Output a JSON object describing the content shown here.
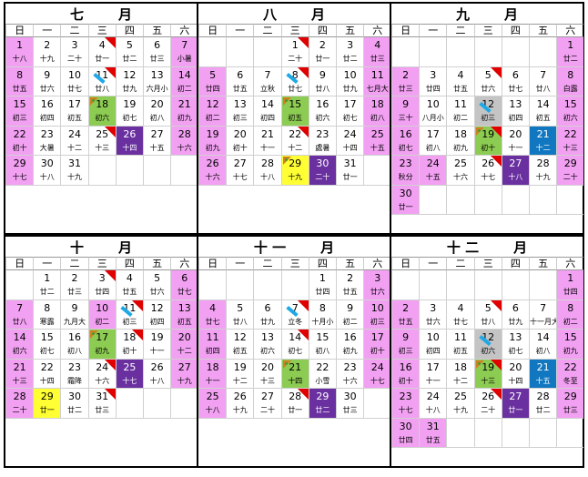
{
  "weekdays": [
    "日",
    "一",
    "二",
    "三",
    "四",
    "五",
    "六"
  ],
  "colors": {
    "weekend": "#f2a0f2",
    "moon": "#8dcc52",
    "new_moon": "#6a30a0",
    "holiday": "#ffff33",
    "gray": "#c4c4c4",
    "blue": "#1177c0"
  },
  "panels": [
    {
      "month": "七",
      "suffix": "月",
      "cells": [
        {
          "d": "1",
          "l": "十八",
          "bg": "weekend"
        },
        {
          "d": "2",
          "l": "十九"
        },
        {
          "d": "3",
          "l": "二十"
        },
        {
          "d": "4",
          "l": "廿一",
          "m": "tri"
        },
        {
          "d": "5",
          "l": "廿二"
        },
        {
          "d": "6",
          "l": "廿三"
        },
        {
          "d": "7",
          "l": "小暑",
          "bg": "weekend"
        },
        {
          "d": "8",
          "l": "廿五",
          "bg": "weekend"
        },
        {
          "d": "9",
          "l": "廿六"
        },
        {
          "d": "10",
          "l": "廿七"
        },
        {
          "d": "11",
          "l": "廿八",
          "m": "tri,blu"
        },
        {
          "d": "12",
          "l": "廿九"
        },
        {
          "d": "13",
          "l": "六月小"
        },
        {
          "d": "14",
          "l": "初二",
          "bg": "weekend"
        },
        {
          "d": "15",
          "l": "初三",
          "bg": "weekend"
        },
        {
          "d": "16",
          "l": "初四"
        },
        {
          "d": "17",
          "l": "初五"
        },
        {
          "d": "18",
          "l": "初六",
          "bg": "moon",
          "m": "dots"
        },
        {
          "d": "19",
          "l": "初七"
        },
        {
          "d": "20",
          "l": "初八"
        },
        {
          "d": "21",
          "l": "初九",
          "bg": "weekend"
        },
        {
          "d": "22",
          "l": "初十",
          "bg": "weekend"
        },
        {
          "d": "23",
          "l": "大暑"
        },
        {
          "d": "24",
          "l": "十二"
        },
        {
          "d": "25",
          "l": "十三",
          "m": "tri"
        },
        {
          "d": "26",
          "l": "十四",
          "bg": "new_moon"
        },
        {
          "d": "27",
          "l": "十五"
        },
        {
          "d": "28",
          "l": "十六",
          "bg": "weekend"
        },
        {
          "d": "29",
          "l": "十七",
          "bg": "weekend"
        },
        {
          "d": "30",
          "l": "十八"
        },
        {
          "d": "31",
          "l": "十九"
        },
        {
          "d": ""
        },
        {
          "d": ""
        },
        {
          "d": ""
        },
        {
          "d": ""
        }
      ]
    },
    {
      "month": "八",
      "suffix": "月",
      "cells": [
        {
          "d": ""
        },
        {
          "d": ""
        },
        {
          "d": ""
        },
        {
          "d": "1",
          "l": "二十",
          "m": "tri"
        },
        {
          "d": "2",
          "l": "廿一"
        },
        {
          "d": "3",
          "l": "廿二"
        },
        {
          "d": "4",
          "l": "廿三",
          "bg": "weekend"
        },
        {
          "d": "5",
          "l": "廿四",
          "bg": "weekend"
        },
        {
          "d": "6",
          "l": "廿五"
        },
        {
          "d": "7",
          "l": "立秋"
        },
        {
          "d": "8",
          "l": "廿七",
          "m": "tri,blu"
        },
        {
          "d": "9",
          "l": "廿八"
        },
        {
          "d": "10",
          "l": "廿九"
        },
        {
          "d": "11",
          "l": "七月大",
          "bg": "weekend"
        },
        {
          "d": "12",
          "l": "初二",
          "bg": "weekend"
        },
        {
          "d": "13",
          "l": "初三"
        },
        {
          "d": "14",
          "l": "初四"
        },
        {
          "d": "15",
          "l": "初五",
          "bg": "moon",
          "m": "dots"
        },
        {
          "d": "16",
          "l": "初六"
        },
        {
          "d": "17",
          "l": "初七"
        },
        {
          "d": "18",
          "l": "初八",
          "bg": "weekend"
        },
        {
          "d": "19",
          "l": "初九",
          "bg": "weekend"
        },
        {
          "d": "20",
          "l": "初十"
        },
        {
          "d": "21",
          "l": "十一"
        },
        {
          "d": "22",
          "l": "十二",
          "m": "tri"
        },
        {
          "d": "23",
          "l": "處暑"
        },
        {
          "d": "24",
          "l": "十四"
        },
        {
          "d": "25",
          "l": "十五",
          "bg": "weekend"
        },
        {
          "d": "26",
          "l": "十六",
          "bg": "weekend"
        },
        {
          "d": "27",
          "l": "十七"
        },
        {
          "d": "28",
          "l": "十八"
        },
        {
          "d": "29",
          "l": "十九",
          "bg": "holiday",
          "m": "dots"
        },
        {
          "d": "30",
          "l": "二十",
          "bg": "new_moon"
        },
        {
          "d": "31",
          "l": "廿一"
        },
        {
          "d": ""
        }
      ]
    },
    {
      "month": "九",
      "suffix": "月",
      "cells": [
        {
          "d": ""
        },
        {
          "d": ""
        },
        {
          "d": ""
        },
        {
          "d": ""
        },
        {
          "d": ""
        },
        {
          "d": ""
        },
        {
          "d": "1",
          "l": "廿二",
          "bg": "weekend"
        },
        {
          "d": "2",
          "l": "廿三",
          "bg": "weekend"
        },
        {
          "d": "3",
          "l": "廿四"
        },
        {
          "d": "4",
          "l": "廿五"
        },
        {
          "d": "5",
          "l": "廿六",
          "m": "tri"
        },
        {
          "d": "6",
          "l": "廿七"
        },
        {
          "d": "7",
          "l": "廿八"
        },
        {
          "d": "8",
          "l": "白露",
          "bg": "weekend"
        },
        {
          "d": "9",
          "l": "三十",
          "bg": "weekend"
        },
        {
          "d": "10",
          "l": "八月小"
        },
        {
          "d": "11",
          "l": "初二"
        },
        {
          "d": "12",
          "l": "初三",
          "bg": "gray",
          "m": "blu"
        },
        {
          "d": "13",
          "l": "初四"
        },
        {
          "d": "14",
          "l": "初五"
        },
        {
          "d": "15",
          "l": "初六",
          "bg": "weekend"
        },
        {
          "d": "16",
          "l": "初七",
          "bg": "weekend"
        },
        {
          "d": "17",
          "l": "初八"
        },
        {
          "d": "18",
          "l": "初九"
        },
        {
          "d": "19",
          "l": "初十",
          "bg": "moon",
          "m": "tri,dots"
        },
        {
          "d": "20",
          "l": "十一"
        },
        {
          "d": "21",
          "l": "十二",
          "bg": "blue"
        },
        {
          "d": "22",
          "l": "十三",
          "bg": "weekend"
        },
        {
          "d": "23",
          "l": "秋分",
          "bg": "weekend"
        },
        {
          "d": "24",
          "l": "十五",
          "bg": "weekend"
        },
        {
          "d": "25",
          "l": "十六"
        },
        {
          "d": "26",
          "l": "十七",
          "m": "tri"
        },
        {
          "d": "27",
          "l": "十八",
          "bg": "new_moon"
        },
        {
          "d": "28",
          "l": "十九"
        },
        {
          "d": "29",
          "l": "二十",
          "bg": "weekend"
        },
        {
          "d": "30",
          "l": "廿一",
          "bg": "weekend"
        },
        {
          "d": ""
        },
        {
          "d": ""
        },
        {
          "d": ""
        },
        {
          "d": ""
        },
        {
          "d": ""
        },
        {
          "d": ""
        }
      ]
    },
    {
      "month": "十",
      "suffix": "月",
      "cells": [
        {
          "d": ""
        },
        {
          "d": "1",
          "l": "廿二"
        },
        {
          "d": "2",
          "l": "廿三"
        },
        {
          "d": "3",
          "l": "廿四",
          "m": "tri"
        },
        {
          "d": "4",
          "l": "廿五"
        },
        {
          "d": "5",
          "l": "廿六"
        },
        {
          "d": "6",
          "l": "廿七",
          "bg": "weekend"
        },
        {
          "d": "7",
          "l": "廿八",
          "bg": "weekend"
        },
        {
          "d": "8",
          "l": "寒露"
        },
        {
          "d": "9",
          "l": "九月大"
        },
        {
          "d": "10",
          "l": "初二",
          "bg": "weekend"
        },
        {
          "d": "11",
          "l": "初三",
          "m": "tri,blu"
        },
        {
          "d": "12",
          "l": "初四"
        },
        {
          "d": "13",
          "l": "初五",
          "bg": "weekend"
        },
        {
          "d": "14",
          "l": "初六",
          "bg": "weekend"
        },
        {
          "d": "15",
          "l": "初七"
        },
        {
          "d": "16",
          "l": "初八"
        },
        {
          "d": "17",
          "l": "初九",
          "bg": "moon",
          "m": "dots"
        },
        {
          "d": "18",
          "l": "初十",
          "m": "tri"
        },
        {
          "d": "19",
          "l": "十一"
        },
        {
          "d": "20",
          "l": "十二",
          "bg": "weekend"
        },
        {
          "d": "21",
          "l": "十三",
          "bg": "weekend"
        },
        {
          "d": "22",
          "l": "十四"
        },
        {
          "d": "23",
          "l": "霜降"
        },
        {
          "d": "24",
          "l": "十六",
          "m": "tri"
        },
        {
          "d": "25",
          "l": "十七",
          "bg": "new_moon"
        },
        {
          "d": "26",
          "l": "十八"
        },
        {
          "d": "27",
          "l": "十九",
          "bg": "weekend"
        },
        {
          "d": "28",
          "l": "二十",
          "bg": "weekend"
        },
        {
          "d": "29",
          "l": "廿一",
          "bg": "holiday"
        },
        {
          "d": "30",
          "l": "廿二"
        },
        {
          "d": "31",
          "l": "廿三",
          "m": "tri"
        },
        {
          "d": ""
        },
        {
          "d": ""
        },
        {
          "d": ""
        }
      ]
    },
    {
      "month": "十 一",
      "suffix": "月",
      "cells": [
        {
          "d": ""
        },
        {
          "d": ""
        },
        {
          "d": ""
        },
        {
          "d": ""
        },
        {
          "d": "1",
          "l": "廿四"
        },
        {
          "d": "2",
          "l": "廿五"
        },
        {
          "d": "3",
          "l": "廿六",
          "bg": "weekend"
        },
        {
          "d": "4",
          "l": "廿七",
          "bg": "weekend"
        },
        {
          "d": "5",
          "l": "廿八"
        },
        {
          "d": "6",
          "l": "廿九"
        },
        {
          "d": "7",
          "l": "立冬",
          "m": "tri,blu"
        },
        {
          "d": "8",
          "l": "十月小"
        },
        {
          "d": "9",
          "l": "初二"
        },
        {
          "d": "10",
          "l": "初三",
          "bg": "weekend"
        },
        {
          "d": "11",
          "l": "初四",
          "bg": "weekend"
        },
        {
          "d": "12",
          "l": "初五"
        },
        {
          "d": "13",
          "l": "初六"
        },
        {
          "d": "14",
          "l": "初七",
          "m": "tri"
        },
        {
          "d": "15",
          "l": "初八"
        },
        {
          "d": "16",
          "l": "初九"
        },
        {
          "d": "17",
          "l": "初十",
          "bg": "weekend"
        },
        {
          "d": "18",
          "l": "十一",
          "bg": "weekend"
        },
        {
          "d": "19",
          "l": "十二"
        },
        {
          "d": "20",
          "l": "十三"
        },
        {
          "d": "21",
          "l": "十四",
          "bg": "moon",
          "m": "dots"
        },
        {
          "d": "22",
          "l": "小雪"
        },
        {
          "d": "23",
          "l": "十六"
        },
        {
          "d": "24",
          "l": "十七",
          "bg": "weekend"
        },
        {
          "d": "25",
          "l": "十八",
          "bg": "weekend"
        },
        {
          "d": "26",
          "l": "十九"
        },
        {
          "d": "27",
          "l": "二十"
        },
        {
          "d": "28",
          "l": "廿一",
          "m": "tri"
        },
        {
          "d": "29",
          "l": "廿二",
          "bg": "new_moon"
        },
        {
          "d": "30",
          "l": "廿三"
        },
        {
          "d": ""
        }
      ]
    },
    {
      "month": "十 二",
      "suffix": "月",
      "cells": [
        {
          "d": ""
        },
        {
          "d": ""
        },
        {
          "d": ""
        },
        {
          "d": ""
        },
        {
          "d": ""
        },
        {
          "d": ""
        },
        {
          "d": "1",
          "l": "廿四",
          "bg": "weekend"
        },
        {
          "d": "2",
          "l": "廿五",
          "bg": "weekend"
        },
        {
          "d": "3",
          "l": "廿六"
        },
        {
          "d": "4",
          "l": "廿七"
        },
        {
          "d": "5",
          "l": "廿八",
          "m": "tri"
        },
        {
          "d": "6",
          "l": "廿九"
        },
        {
          "d": "7",
          "l": "十一月大"
        },
        {
          "d": "8",
          "l": "初二",
          "bg": "weekend"
        },
        {
          "d": "9",
          "l": "初三",
          "bg": "weekend"
        },
        {
          "d": "10",
          "l": "初四"
        },
        {
          "d": "11",
          "l": "初五"
        },
        {
          "d": "12",
          "l": "初六",
          "bg": "gray",
          "m": "blu"
        },
        {
          "d": "13",
          "l": "初七"
        },
        {
          "d": "14",
          "l": "初八"
        },
        {
          "d": "15",
          "l": "初九",
          "bg": "weekend"
        },
        {
          "d": "16",
          "l": "初十",
          "bg": "weekend"
        },
        {
          "d": "17",
          "l": "十一"
        },
        {
          "d": "18",
          "l": "十二"
        },
        {
          "d": "19",
          "l": "十三",
          "bg": "moon",
          "m": "tri,dots"
        },
        {
          "d": "20",
          "l": "十四"
        },
        {
          "d": "21",
          "l": "十五",
          "bg": "blue"
        },
        {
          "d": "22",
          "l": "冬至",
          "bg": "weekend"
        },
        {
          "d": "23",
          "l": "十七",
          "bg": "weekend"
        },
        {
          "d": "24",
          "l": "十八"
        },
        {
          "d": "25",
          "l": "十九"
        },
        {
          "d": "26",
          "l": "二十",
          "m": "tri"
        },
        {
          "d": "27",
          "l": "廿一",
          "bg": "new_moon"
        },
        {
          "d": "28",
          "l": "廿二"
        },
        {
          "d": "29",
          "l": "廿三",
          "bg": "weekend"
        },
        {
          "d": "30",
          "l": "廿四",
          "bg": "weekend"
        },
        {
          "d": "31",
          "l": "廿五",
          "bg": "weekend"
        },
        {
          "d": ""
        },
        {
          "d": ""
        },
        {
          "d": ""
        },
        {
          "d": ""
        },
        {
          "d": ""
        }
      ]
    }
  ]
}
